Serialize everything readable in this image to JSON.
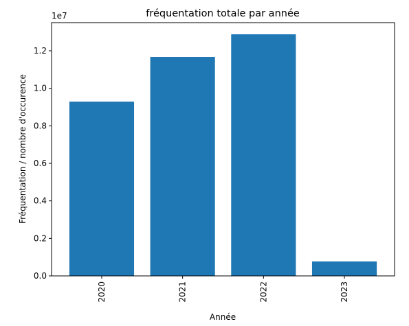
{
  "chart_data": {
    "type": "bar",
    "title": "fréquentation totale par année",
    "xlabel": "Année",
    "ylabel": "Fréquentation / nombre d'occurence",
    "categories": [
      "2020",
      "2021",
      "2022",
      "2023"
    ],
    "values": [
      9290000,
      11670000,
      12880000,
      770000
    ],
    "ylim": [
      0,
      13500000
    ],
    "yticks": [
      0,
      2000000,
      4000000,
      6000000,
      8000000,
      10000000,
      12000000
    ],
    "ytick_labels": [
      "0.0",
      "0.2",
      "0.4",
      "0.6",
      "0.8",
      "1.0",
      "1.2"
    ],
    "scale_label": "1e7",
    "bar_color": "#1f77b4",
    "grid": false,
    "legend": "none"
  }
}
